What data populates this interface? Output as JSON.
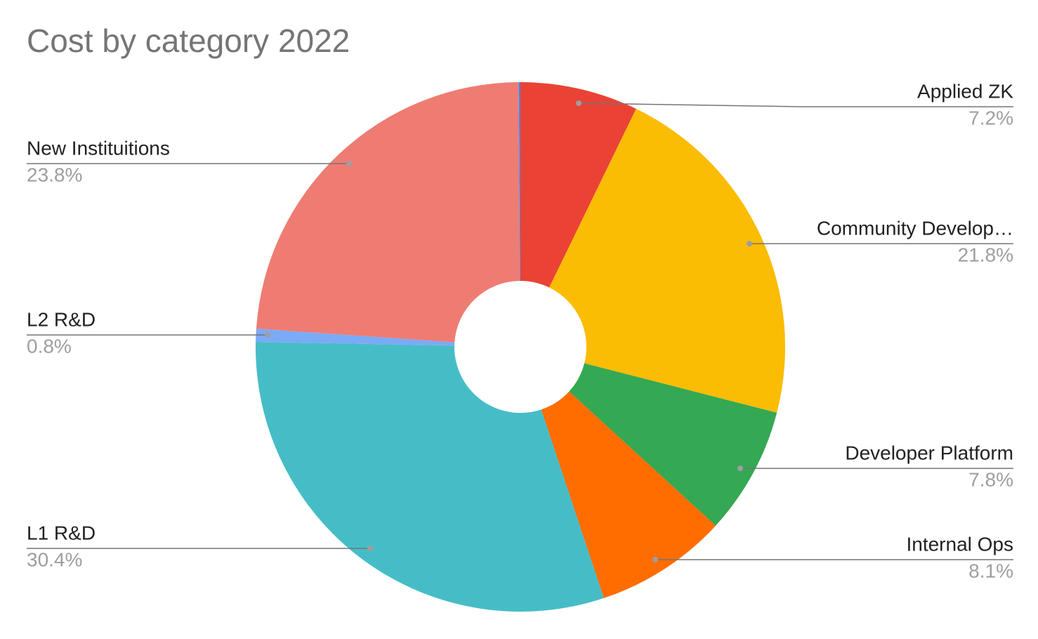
{
  "chart_data": {
    "type": "pie",
    "title": "Cost by category 2022",
    "categories": [
      "Applied ZK",
      "Community Develop…",
      "Developer Platform",
      "Internal Ops",
      "L1 R&D",
      "L2 R&D",
      "New Instituitions",
      null
    ],
    "values": [
      7.2,
      21.8,
      7.8,
      8.1,
      30.4,
      0.8,
      23.8,
      0.1
    ],
    "value_labels": [
      "7.2%",
      "21.8%",
      "7.8%",
      "8.1%",
      "30.4%",
      "0.8%",
      "23.8%",
      null
    ],
    "colors": [
      "#ea4335",
      "#fbbc04",
      "#34a853",
      "#ff6d01",
      "#46bdc6",
      "#7baaf7",
      "#ee7c72",
      "#4285f4"
    ],
    "donut": true
  }
}
